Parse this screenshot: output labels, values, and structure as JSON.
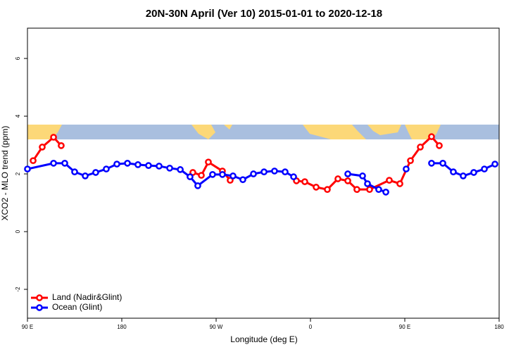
{
  "chart_data": {
    "type": "line",
    "title": "20N-30N April (Ver 10)   2015-01-01 to 2020-12-18",
    "x_label": "Longitude (deg E)",
    "y_label": "XCO2 - MLO trend (ppm)",
    "xlim": [
      90,
      540
    ],
    "xticks": [
      {
        "value": 90,
        "label": "90 E"
      },
      {
        "value": 180,
        "label": "180"
      },
      {
        "value": 270,
        "label": "90 W"
      },
      {
        "value": 360,
        "label": "0"
      },
      {
        "value": 450,
        "label": "90 E"
      },
      {
        "value": 540,
        "label": "180"
      }
    ],
    "ylim": [
      -3,
      7.05
    ],
    "yticks": [
      -2,
      0,
      2,
      4,
      6
    ],
    "legend": "bottom-left",
    "series": [
      {
        "name": "Land (Nadir&Glint)",
        "color": "#ff0000",
        "x": [
          95.4,
          104.1,
          114.9,
          122.2,
          null,
          247.8,
          255.9,
          262.6,
          276.0,
          283.4,
          null,
          346.6,
          354.6,
          365.4,
          376.1,
          386.2,
          395.6,
          404.3,
          416.4,
          435.2,
          445.3,
          455.4,
          464.8,
          475.5,
          482.9
        ],
        "values": [
          2.46,
          2.93,
          3.27,
          2.98,
          null,
          2.05,
          1.95,
          2.41,
          2.1,
          1.78,
          null,
          1.76,
          1.73,
          1.54,
          1.46,
          1.83,
          1.76,
          1.46,
          1.46,
          1.78,
          1.66,
          2.46,
          2.93,
          3.29,
          2.98
        ]
      },
      {
        "name": "Ocean (Glint)",
        "color": "#0000ff",
        "x": [
          90.0,
          114.9,
          125.6,
          135.0,
          145.1,
          155.1,
          165.2,
          175.3,
          185.4,
          195.4,
          205.5,
          215.6,
          225.7,
          235.8,
          245.1,
          252.5,
          266.6,
          276.0,
          286.1,
          295.5,
          305.6,
          315.7,
          325.7,
          335.8,
          343.9,
          null,
          395.6,
          409.7,
          414.4,
          425.1,
          431.9,
          null,
          451.3,
          null,
          475.5,
          486.3,
          496.3,
          505.7,
          515.8,
          525.9,
          536.0
        ],
        "values": [
          2.17,
          2.37,
          2.37,
          2.07,
          1.93,
          2.05,
          2.17,
          2.34,
          2.37,
          2.32,
          2.29,
          2.27,
          2.2,
          2.15,
          1.9,
          1.59,
          1.98,
          1.98,
          1.93,
          1.8,
          2.0,
          2.07,
          2.1,
          2.07,
          1.9,
          null,
          2.0,
          1.93,
          1.66,
          1.46,
          1.37,
          null,
          2.17,
          null,
          2.37,
          2.37,
          2.07,
          1.93,
          2.05,
          2.17,
          2.34
        ]
      }
    ]
  }
}
